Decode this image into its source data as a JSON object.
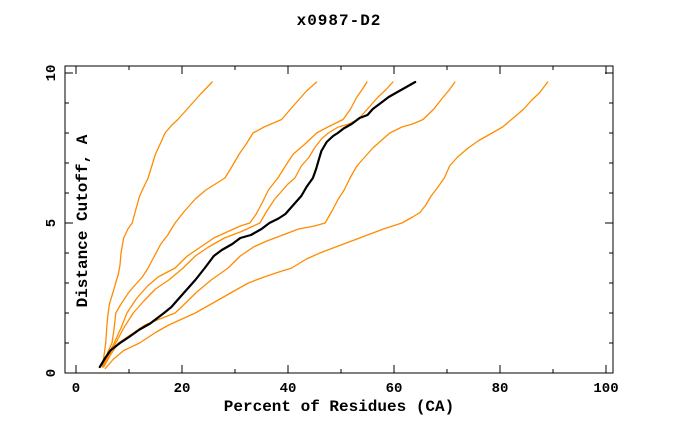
{
  "chart_data": {
    "type": "line",
    "title": "x0987-D2",
    "xlabel": "Percent of Residues (CA)",
    "ylabel": "Distance Cutoff, A",
    "xlim": [
      0,
      100
    ],
    "ylim": [
      0,
      10
    ],
    "x_ticks_major": [
      0,
      20,
      40,
      60,
      80,
      100
    ],
    "x_ticks_minor": [
      10,
      30,
      50,
      70,
      90
    ],
    "y_ticks_major": [
      0,
      5,
      10
    ],
    "y_ticks_minor": [
      1,
      2,
      3,
      4,
      6,
      7,
      8,
      9
    ],
    "grid": false,
    "legend": "none",
    "colors": {
      "model": "#ff8c00",
      "highlight": "#000000",
      "background": "#ffffff",
      "text": "#000000"
    },
    "series": [
      {
        "name": "model-curve-1",
        "color": "#ff8c00",
        "width": 1.3,
        "points": [
          [
            5.0,
            0.25
          ],
          [
            5.3,
            0.6
          ],
          [
            5.6,
            1.0
          ],
          [
            5.8,
            1.5
          ],
          [
            6.0,
            1.9
          ],
          [
            6.3,
            2.3
          ],
          [
            7.0,
            2.7
          ],
          [
            7.4,
            2.95
          ],
          [
            8.0,
            3.3
          ],
          [
            8.3,
            3.6
          ],
          [
            8.5,
            4.0
          ],
          [
            9.0,
            4.5
          ],
          [
            9.8,
            4.8
          ],
          [
            10.6,
            5.0
          ],
          [
            11.2,
            5.4
          ],
          [
            12.0,
            5.9
          ],
          [
            12.8,
            6.2
          ],
          [
            13.6,
            6.5
          ],
          [
            14.3,
            6.9
          ],
          [
            15.0,
            7.3
          ],
          [
            15.8,
            7.6
          ],
          [
            16.8,
            8.0
          ],
          [
            18.0,
            8.25
          ],
          [
            19.2,
            8.45
          ],
          [
            20.5,
            8.7
          ],
          [
            22.0,
            9.0
          ],
          [
            23.5,
            9.3
          ],
          [
            25.7,
            9.7
          ]
        ]
      },
      {
        "name": "model-curve-2",
        "color": "#ff8c00",
        "width": 1.3,
        "points": [
          [
            5.0,
            0.25
          ],
          [
            6.0,
            0.7
          ],
          [
            6.8,
            1.0
          ],
          [
            7.2,
            1.5
          ],
          [
            7.5,
            2.0
          ],
          [
            8.5,
            2.3
          ],
          [
            10.0,
            2.7
          ],
          [
            11.5,
            3.0
          ],
          [
            12.5,
            3.2
          ],
          [
            13.6,
            3.5
          ],
          [
            14.8,
            3.9
          ],
          [
            16.0,
            4.3
          ],
          [
            17.3,
            4.6
          ],
          [
            18.7,
            5.0
          ],
          [
            20.5,
            5.4
          ],
          [
            22.5,
            5.8
          ],
          [
            24.5,
            6.1
          ],
          [
            26.3,
            6.3
          ],
          [
            28.1,
            6.5
          ],
          [
            29.5,
            6.9
          ],
          [
            30.8,
            7.3
          ],
          [
            32.0,
            7.6
          ],
          [
            33.4,
            8.0
          ],
          [
            35.5,
            8.2
          ],
          [
            38.8,
            8.45
          ],
          [
            40.5,
            8.8
          ],
          [
            42.0,
            9.1
          ],
          [
            43.5,
            9.4
          ],
          [
            45.4,
            9.7
          ]
        ]
      },
      {
        "name": "model-curve-3",
        "color": "#ff8c00",
        "width": 1.3,
        "points": [
          [
            5.0,
            0.2
          ],
          [
            6.0,
            0.6
          ],
          [
            7.2,
            1.0
          ],
          [
            8.5,
            1.5
          ],
          [
            9.6,
            2.0
          ],
          [
            11.5,
            2.5
          ],
          [
            13.5,
            2.9
          ],
          [
            15.5,
            3.2
          ],
          [
            18.7,
            3.5
          ],
          [
            21.0,
            3.9
          ],
          [
            23.5,
            4.2
          ],
          [
            26.0,
            4.5
          ],
          [
            28.5,
            4.7
          ],
          [
            31.0,
            4.9
          ],
          [
            32.8,
            5.0
          ],
          [
            34.0,
            5.3
          ],
          [
            35.2,
            5.7
          ],
          [
            36.3,
            6.1
          ],
          [
            38.1,
            6.5
          ],
          [
            39.5,
            6.9
          ],
          [
            41.0,
            7.3
          ],
          [
            43.0,
            7.6
          ],
          [
            45.4,
            8.0
          ],
          [
            47.5,
            8.2
          ],
          [
            50.4,
            8.45
          ],
          [
            51.8,
            8.8
          ],
          [
            53.0,
            9.2
          ],
          [
            54.0,
            9.45
          ],
          [
            54.9,
            9.7
          ]
        ]
      },
      {
        "name": "model-curve-4",
        "color": "#ff8c00",
        "width": 1.3,
        "points": [
          [
            5.0,
            0.2
          ],
          [
            6.2,
            0.6
          ],
          [
            7.5,
            1.0
          ],
          [
            9.0,
            1.5
          ],
          [
            10.8,
            2.0
          ],
          [
            12.8,
            2.4
          ],
          [
            15.0,
            2.8
          ],
          [
            17.5,
            3.1
          ],
          [
            20.2,
            3.5
          ],
          [
            22.5,
            3.9
          ],
          [
            25.0,
            4.2
          ],
          [
            28.0,
            4.5
          ],
          [
            31.0,
            4.7
          ],
          [
            34.7,
            5.0
          ],
          [
            36.0,
            5.4
          ],
          [
            37.5,
            5.8
          ],
          [
            39.0,
            6.1
          ],
          [
            40.0,
            6.3
          ],
          [
            41.3,
            6.5
          ],
          [
            42.5,
            6.9
          ],
          [
            44.0,
            7.2
          ],
          [
            45.0,
            7.5
          ],
          [
            46.3,
            7.8
          ],
          [
            47.6,
            8.0
          ],
          [
            49.5,
            8.2
          ],
          [
            51.5,
            8.3
          ],
          [
            53.2,
            8.45
          ],
          [
            55.0,
            8.8
          ],
          [
            57.0,
            9.2
          ],
          [
            58.5,
            9.45
          ],
          [
            59.8,
            9.7
          ]
        ]
      },
      {
        "name": "model-curve-5",
        "color": "#ff8c00",
        "width": 1.3,
        "points": [
          [
            5.2,
            0.2
          ],
          [
            6.5,
            0.6
          ],
          [
            8.0,
            1.0
          ],
          [
            10.5,
            1.3
          ],
          [
            13.0,
            1.6
          ],
          [
            15.8,
            1.8
          ],
          [
            18.7,
            2.0
          ],
          [
            20.5,
            2.3
          ],
          [
            22.8,
            2.7
          ],
          [
            25.5,
            3.1
          ],
          [
            28.7,
            3.5
          ],
          [
            31.0,
            3.9
          ],
          [
            33.5,
            4.2
          ],
          [
            36.0,
            4.4
          ],
          [
            39.0,
            4.6
          ],
          [
            42.0,
            4.8
          ],
          [
            45.0,
            4.9
          ],
          [
            47.0,
            5.0
          ],
          [
            48.3,
            5.4
          ],
          [
            49.5,
            5.8
          ],
          [
            50.6,
            6.1
          ],
          [
            51.7,
            6.5
          ],
          [
            53.0,
            6.9
          ],
          [
            54.5,
            7.2
          ],
          [
            56.0,
            7.5
          ],
          [
            57.6,
            7.75
          ],
          [
            59.2,
            8.0
          ],
          [
            61.5,
            8.2
          ],
          [
            63.5,
            8.3
          ],
          [
            65.5,
            8.45
          ],
          [
            67.5,
            8.8
          ],
          [
            69.3,
            9.2
          ],
          [
            70.5,
            9.45
          ],
          [
            71.5,
            9.7
          ]
        ]
      },
      {
        "name": "model-curve-6",
        "color": "#ff8c00",
        "width": 1.3,
        "points": [
          [
            5.5,
            0.15
          ],
          [
            7.0,
            0.45
          ],
          [
            9.0,
            0.75
          ],
          [
            12.0,
            1.0
          ],
          [
            15.0,
            1.35
          ],
          [
            17.5,
            1.6
          ],
          [
            20.0,
            1.8
          ],
          [
            22.5,
            2.0
          ],
          [
            25.0,
            2.25
          ],
          [
            27.5,
            2.5
          ],
          [
            30.0,
            2.75
          ],
          [
            32.5,
            3.0
          ],
          [
            35.5,
            3.2
          ],
          [
            38.0,
            3.35
          ],
          [
            40.7,
            3.5
          ],
          [
            43.5,
            3.8
          ],
          [
            46.0,
            4.0
          ],
          [
            49.0,
            4.2
          ],
          [
            52.0,
            4.4
          ],
          [
            55.0,
            4.6
          ],
          [
            58.0,
            4.8
          ],
          [
            61.5,
            5.0
          ],
          [
            63.5,
            5.2
          ],
          [
            64.9,
            5.35
          ],
          [
            66.0,
            5.6
          ],
          [
            67.0,
            5.9
          ],
          [
            68.3,
            6.2
          ],
          [
            69.5,
            6.5
          ],
          [
            70.5,
            6.9
          ],
          [
            72.0,
            7.2
          ],
          [
            74.0,
            7.5
          ],
          [
            76.0,
            7.75
          ],
          [
            78.5,
            8.0
          ],
          [
            80.5,
            8.2
          ],
          [
            82.5,
            8.5
          ],
          [
            84.5,
            8.8
          ],
          [
            86.0,
            9.1
          ],
          [
            87.5,
            9.35
          ],
          [
            89.0,
            9.7
          ]
        ]
      },
      {
        "name": "highlighted-model-curve",
        "color": "#000000",
        "width": 2.2,
        "points": [
          [
            4.5,
            0.2
          ],
          [
            5.5,
            0.5
          ],
          [
            6.5,
            0.75
          ],
          [
            8.3,
            1.0
          ],
          [
            10.0,
            1.2
          ],
          [
            12.0,
            1.45
          ],
          [
            14.0,
            1.65
          ],
          [
            16.6,
            2.0
          ],
          [
            18.0,
            2.2
          ],
          [
            19.5,
            2.5
          ],
          [
            21.0,
            2.8
          ],
          [
            22.5,
            3.1
          ],
          [
            24.3,
            3.5
          ],
          [
            26.0,
            3.9
          ],
          [
            27.5,
            4.1
          ],
          [
            29.5,
            4.3
          ],
          [
            31.0,
            4.5
          ],
          [
            33.0,
            4.6
          ],
          [
            35.0,
            4.8
          ],
          [
            36.5,
            5.0
          ],
          [
            38.2,
            5.15
          ],
          [
            39.5,
            5.3
          ],
          [
            41.0,
            5.6
          ],
          [
            42.5,
            5.9
          ],
          [
            43.5,
            6.2
          ],
          [
            44.7,
            6.5
          ],
          [
            45.3,
            6.8
          ],
          [
            45.8,
            7.1
          ],
          [
            46.3,
            7.4
          ],
          [
            47.3,
            7.7
          ],
          [
            48.5,
            7.9
          ],
          [
            49.4,
            8.0
          ],
          [
            50.5,
            8.15
          ],
          [
            52.0,
            8.3
          ],
          [
            53.5,
            8.5
          ],
          [
            55.0,
            8.6
          ],
          [
            56.0,
            8.8
          ],
          [
            57.5,
            9.0
          ],
          [
            59.0,
            9.2
          ],
          [
            60.5,
            9.35
          ],
          [
            62.0,
            9.5
          ],
          [
            64.0,
            9.7
          ]
        ]
      }
    ]
  }
}
